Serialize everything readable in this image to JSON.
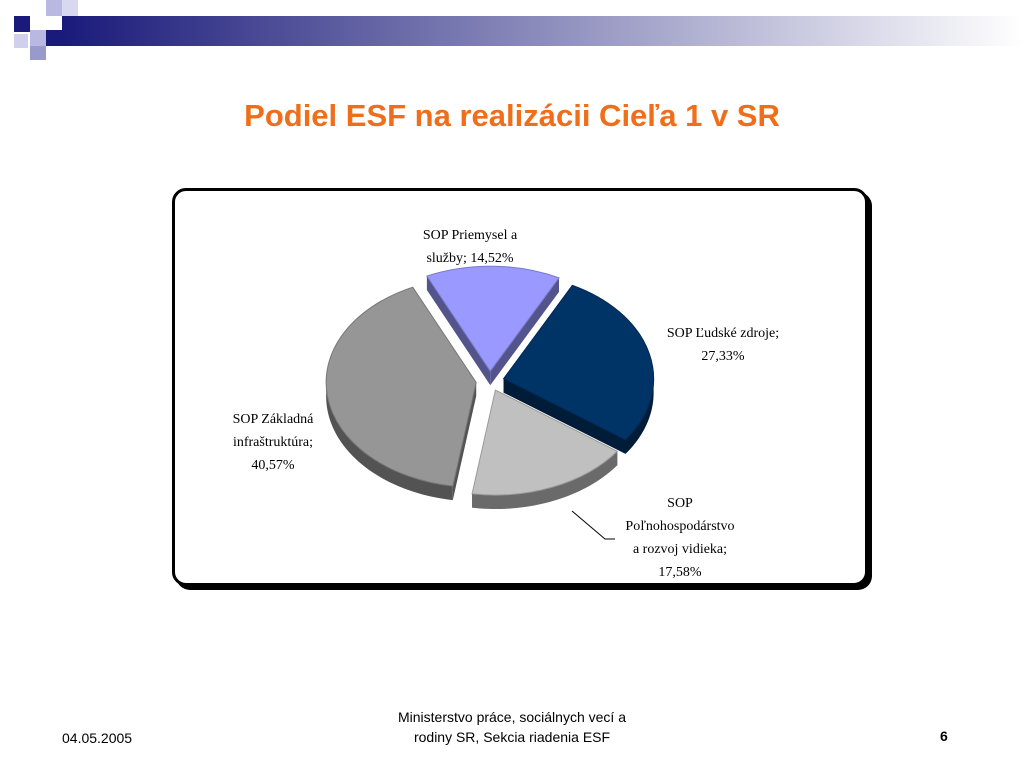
{
  "slide": {
    "title": "Podiel ESF na realizácii Cieľa 1 v SR",
    "date": "04.05.2005",
    "organization": "Ministerstvo práce, sociálnych vecí a\nrodiny SR, Sekcia riadenia ESF",
    "page_number": "6"
  },
  "colors": {
    "title": "#f06e1a",
    "deco_dark": "#1a1a7a",
    "deco_light": "#b8b8e0"
  },
  "chart_data": {
    "type": "pie",
    "title": "",
    "exploded": true,
    "three_d": true,
    "slices": [
      {
        "label": "SOP Priemysel a služby; 14,52%",
        "label_lines": [
          "SOP Priemysel a",
          "služby; 14,52%"
        ],
        "value": 14.52,
        "color": "#9999ff"
      },
      {
        "label": "SOP Ľudské zdroje; 27,33%",
        "label_lines": [
          "SOP Ľudské zdroje;",
          "27,33%"
        ],
        "value": 27.33,
        "color": "#003366"
      },
      {
        "label": "SOP Poľnohospodárstvo a rozvoj vidieka; 17,58%",
        "label_lines": [
          "SOP",
          "Poľnohospodárstvo",
          "a rozvoj vidieka;",
          "17,58%"
        ],
        "value": 17.58,
        "color": "#c0c0c0"
      },
      {
        "label": "SOP Základná infraštruktúra; 40,57%",
        "label_lines": [
          "SOP Základná",
          "infraštruktúra;",
          "40,57%"
        ],
        "value": 40.57,
        "color": "#969696"
      }
    ]
  }
}
